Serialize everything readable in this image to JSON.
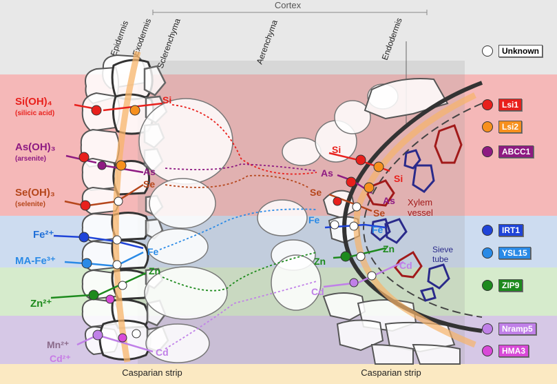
{
  "cortex_label": "Cortex",
  "tissues": {
    "epidermis": "Epidermis",
    "exodermis": "Exodermis",
    "sclerenchyma": "Sclerenchyma",
    "aerenchyma": "Aerenchyma",
    "endodermis": "Endodermis"
  },
  "casparian": {
    "left": "Casparian strip",
    "right": "Casparian strip"
  },
  "ions": {
    "si": {
      "formula": "Si(OH)₄",
      "name": "(silicic acid)",
      "color": "#e8201c"
    },
    "as": {
      "formula": "As(OH)₃",
      "name": "(arsenite)",
      "color": "#8e1a82"
    },
    "se": {
      "formula": "Se(OH)₃",
      "name": "(selenite)",
      "color": "#b5461b"
    },
    "fe": {
      "formula": "Fe²⁺",
      "color": "#1f6fd8"
    },
    "mafe": {
      "formula": "MA-Fe³⁺",
      "color": "#2a8ae6"
    },
    "zn": {
      "formula": "Zn²⁺",
      "color": "#1d8a1d"
    },
    "mn": {
      "formula": "Mn²⁺",
      "color": "#8a6a8a"
    },
    "cd": {
      "formula": "Cd²⁺",
      "color": "#c77be6"
    }
  },
  "flow_labels": {
    "si_left": "Si",
    "as_left": "As",
    "se_left": "Se",
    "fe_left": "Fe",
    "zn_left": "Zn",
    "cd_left": "Cd",
    "si_right": "Si",
    "as_right": "As",
    "se_right": "Se",
    "fe_right": "Fe",
    "zn_right": "Zn",
    "cd_right": "Cd",
    "si_xylem": "Si",
    "as_xylem": "As",
    "se_xylem": "Se",
    "fe_xylem": "Fe",
    "zn_xylem": "Zn",
    "cd_phloem": "Cd"
  },
  "vessels": {
    "xylem": "Xylem\nvessel",
    "sieve": "Sieve\ntube"
  },
  "legend": [
    {
      "label": "Unknown",
      "color": "#ffffff",
      "box": "#ffffff"
    },
    {
      "label": "Lsi1",
      "color": "#e8201c",
      "box": "#e8201c"
    },
    {
      "label": "Lsi2",
      "color": "#f7901e",
      "box": "#f7901e"
    },
    {
      "label": "ABCC1",
      "color": "#8e1a82",
      "box": "#8e1a82"
    },
    {
      "label": "IRT1",
      "color": "#1f44d8",
      "box": "#1f44d8"
    },
    {
      "label": "YSL15",
      "color": "#2a8ae6",
      "box": "#2a8ae6"
    },
    {
      "label": "ZIP9",
      "color": "#1d8a1d",
      "box": "#1d8a1d"
    },
    {
      "label": "Nramp5",
      "color": "#c080e8",
      "box": "#c080e8"
    },
    {
      "label": "HMA3",
      "color": "#d84ad8",
      "box": "#d84ad8"
    }
  ]
}
